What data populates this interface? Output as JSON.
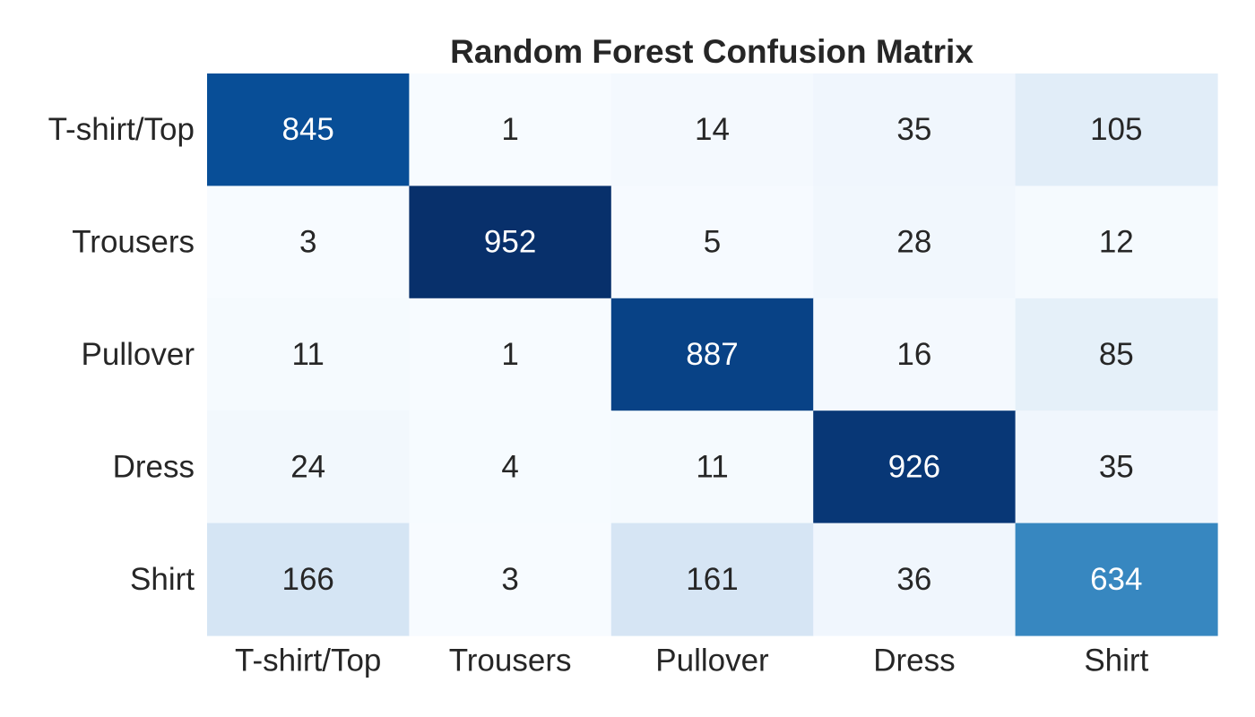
{
  "chart_data": {
    "type": "heatmap",
    "title": "Random Forest Confusion Matrix",
    "xlabel": "",
    "ylabel": "",
    "rows": [
      "T-shirt/Top",
      "Trousers",
      "Pullover",
      "Dress",
      "Shirt"
    ],
    "columns": [
      "T-shirt/Top",
      "Trousers",
      "Pullover",
      "Dress",
      "Shirt"
    ],
    "values": [
      [
        845,
        1,
        14,
        35,
        105
      ],
      [
        3,
        952,
        5,
        28,
        12
      ],
      [
        11,
        1,
        887,
        16,
        85
      ],
      [
        24,
        4,
        11,
        926,
        35
      ],
      [
        166,
        3,
        161,
        36,
        634
      ]
    ],
    "colormap": "Blues",
    "colorbar": false,
    "grid": false,
    "text_color_dark": "#262626",
    "text_color_light": "#ffffff"
  }
}
